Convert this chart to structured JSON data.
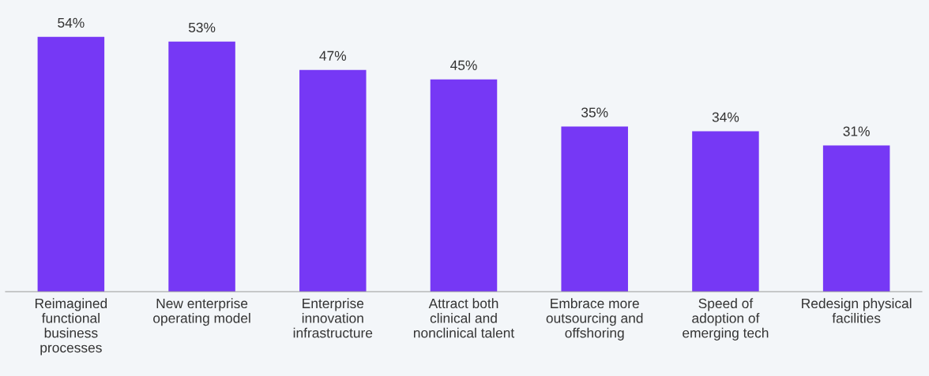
{
  "chart_data": {
    "type": "bar",
    "categories": [
      "Reimagined\nfunctional\nbusiness\nprocesses",
      "New enterprise\noperating model",
      "Enterprise\ninnovation\ninfrastructure",
      "Attract both\nclinical and\nnonclinical talent",
      "Embrace more\noutsourcing and\noffshoring",
      "Speed of\nadoption of\nemerging tech",
      "Redesign physical\nfacilities"
    ],
    "values": [
      54,
      53,
      47,
      45,
      35,
      34,
      31
    ],
    "value_labels": [
      "54%",
      "53%",
      "47%",
      "45%",
      "35%",
      "34%",
      "31%"
    ],
    "color": "#7638f5",
    "grid": false,
    "legend": false
  }
}
